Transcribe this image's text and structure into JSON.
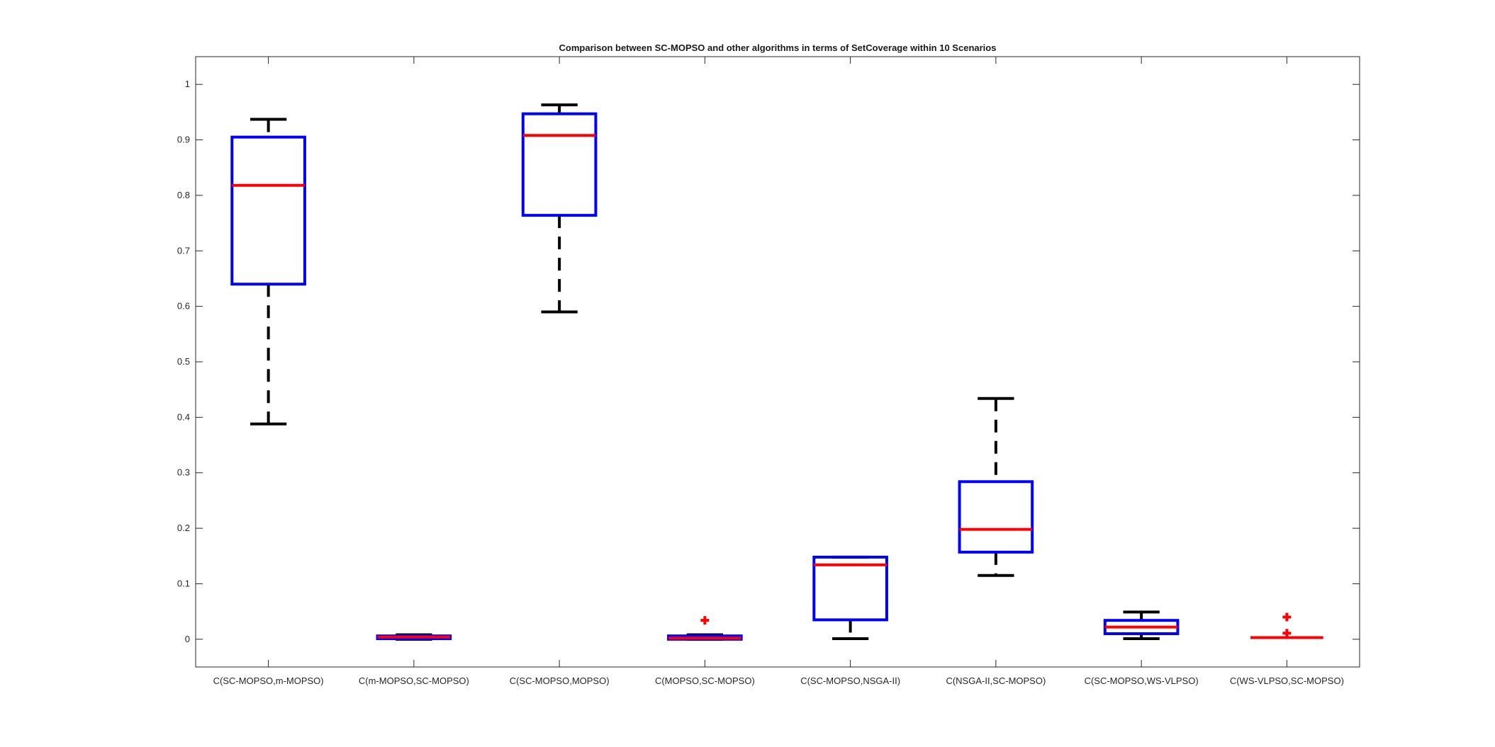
{
  "chart_data": {
    "type": "boxplot",
    "title": "Comparison between SC-MOPSO and other algorithms in terms of SetCoverage within 10 Scenarios",
    "xlabel": "",
    "ylabel": "",
    "ylim": [
      -0.05,
      1.05
    ],
    "yticks": [
      "0",
      "0.1",
      "0.2",
      "0.3",
      "0.4",
      "0.5",
      "0.6",
      "0.7",
      "0.8",
      "0.9",
      "1"
    ],
    "ytick_values": [
      0,
      0.1,
      0.2,
      0.3,
      0.4,
      0.5,
      0.6,
      0.7,
      0.8,
      0.9,
      1
    ],
    "categories": [
      "C(SC-MOPSO,m-MOPSO)",
      "C(m-MOPSO,SC-MOPSO)",
      "C(SC-MOPSO,MOPSO)",
      "C(MOPSO,SC-MOPSO)",
      "C(SC-MOPSO,NSGA-II)",
      "C(NSGA-II,SC-MOPSO)",
      "C(SC-MOPSO,WS-VLPSO)",
      "C(WS-VLPSO,SC-MOPSO)"
    ],
    "boxes": [
      {
        "whisker_low": 0.388,
        "q1": 0.64,
        "median": 0.818,
        "q3": 0.905,
        "whisker_high": 0.937,
        "outliers": []
      },
      {
        "whisker_low": 0.0,
        "q1": 0.001,
        "median": 0.004,
        "q3": 0.006,
        "whisker_high": 0.008,
        "outliers": []
      },
      {
        "whisker_low": 0.59,
        "q1": 0.764,
        "median": 0.908,
        "q3": 0.947,
        "whisker_high": 0.963,
        "outliers": []
      },
      {
        "whisker_low": 0.0,
        "q1": 0.0,
        "median": 0.002,
        "q3": 0.006,
        "whisker_high": 0.008,
        "outliers": [
          0.034
        ]
      },
      {
        "whisker_low": 0.001,
        "q1": 0.035,
        "median": 0.134,
        "q3": 0.148,
        "whisker_high": 0.148,
        "outliers": []
      },
      {
        "whisker_low": 0.115,
        "q1": 0.157,
        "median": 0.198,
        "q3": 0.284,
        "whisker_high": 0.434,
        "outliers": []
      },
      {
        "whisker_low": 0.001,
        "q1": 0.01,
        "median": 0.022,
        "q3": 0.034,
        "whisker_high": 0.049,
        "outliers": []
      },
      {
        "whisker_low": 0.003,
        "q1": 0.003,
        "median": 0.003,
        "q3": 0.003,
        "whisker_high": 0.003,
        "outliers": [
          0.011,
          0.04
        ]
      }
    ],
    "colors": {
      "box": "#0000ff",
      "median": "#ff0000",
      "whisker": "#000000",
      "outlier": "#ff0000",
      "axes": "#262626"
    },
    "grid": false,
    "legend": "none"
  }
}
